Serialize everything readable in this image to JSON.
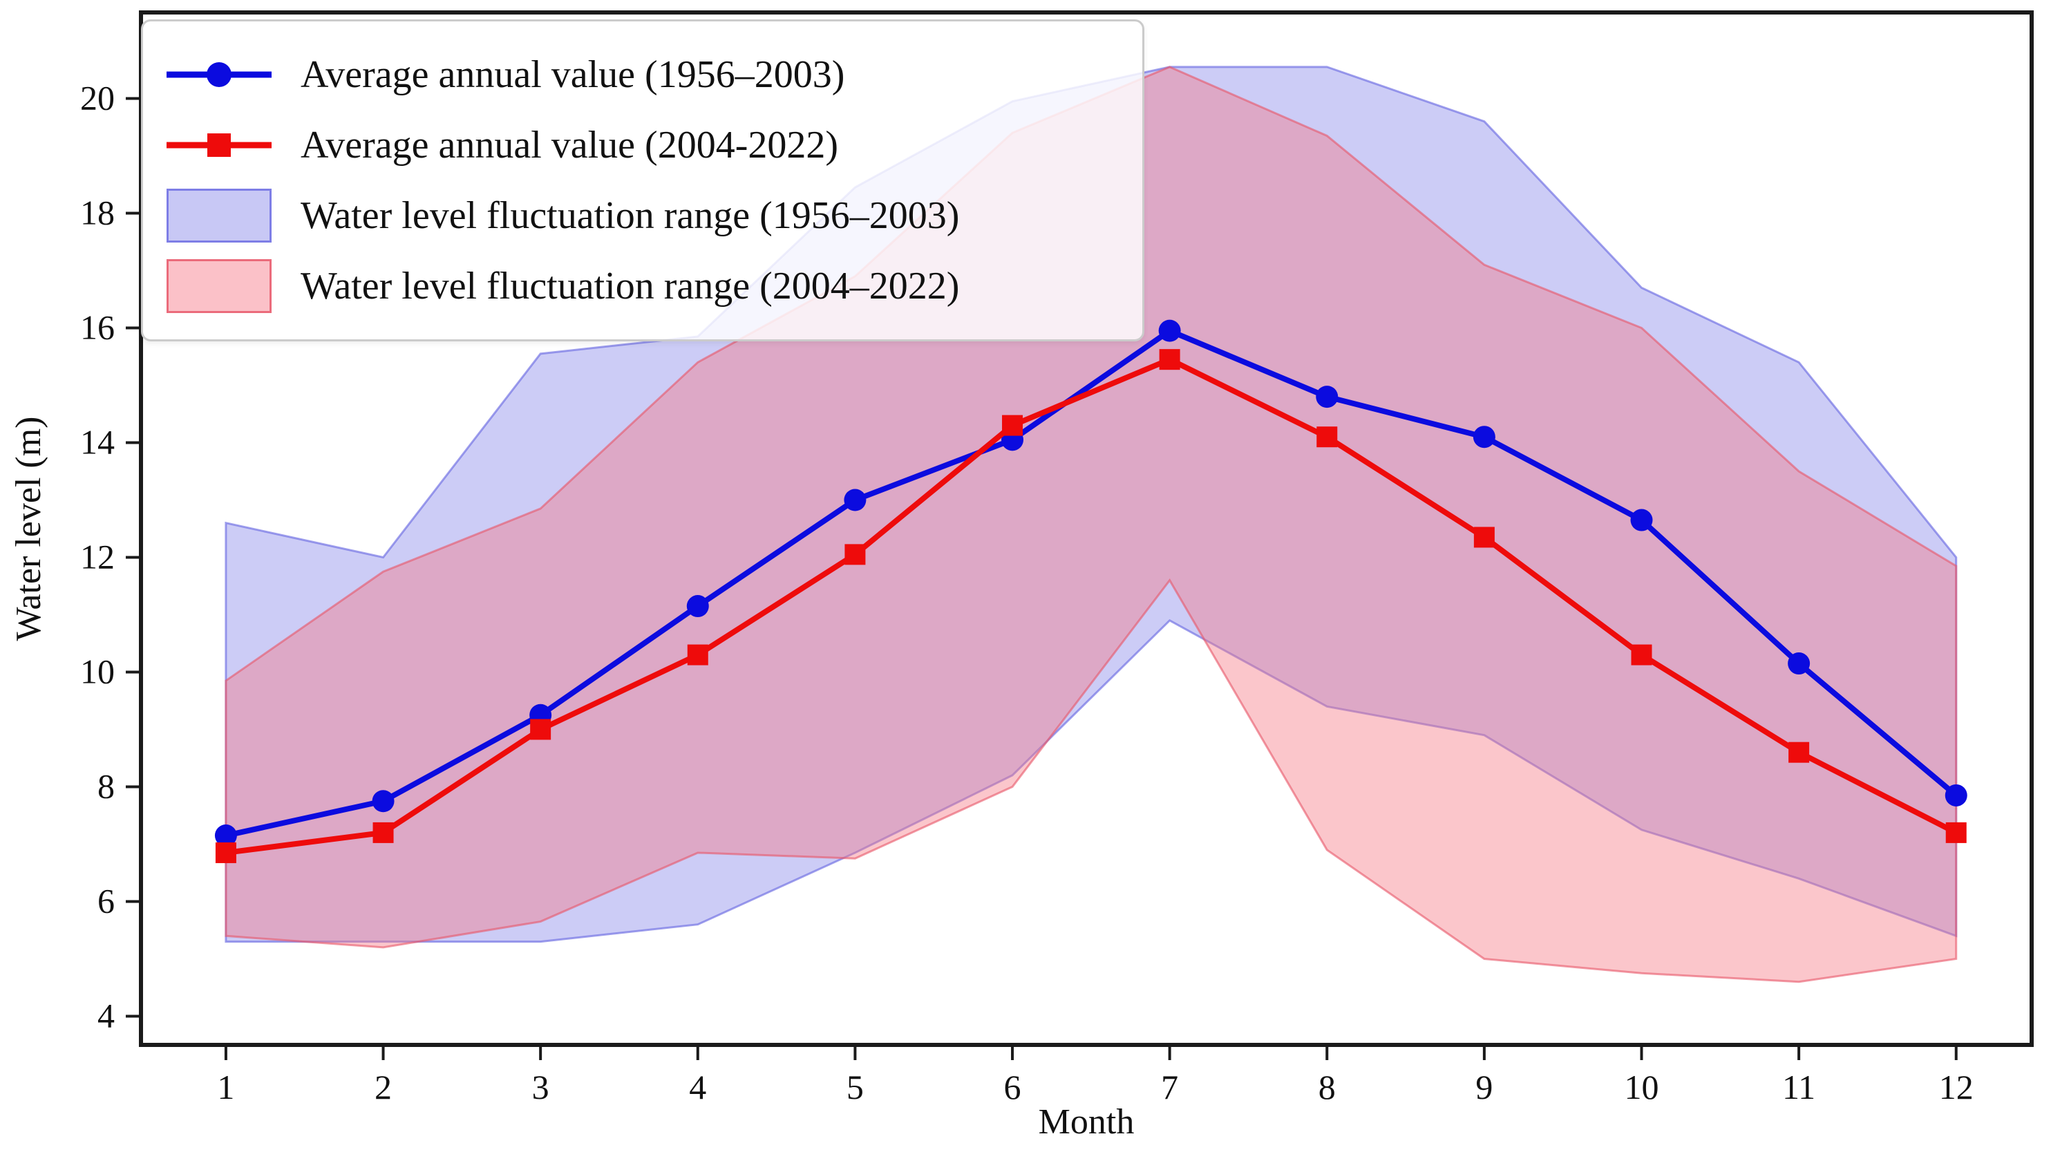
{
  "chart_data": {
    "type": "line",
    "title": "",
    "xlabel": "Month",
    "ylabel": "Water level (m)",
    "x_ticks": [
      1,
      2,
      3,
      4,
      5,
      6,
      7,
      8,
      9,
      10,
      11,
      12
    ],
    "y_ticks": [
      4,
      6,
      8,
      10,
      12,
      14,
      16,
      18,
      20
    ],
    "xlim": [
      0.46,
      12.48
    ],
    "ylim": [
      3.5,
      21.5
    ],
    "grid": false,
    "months": [
      1,
      2,
      3,
      4,
      5,
      6,
      7,
      8,
      9,
      10,
      11,
      12
    ],
    "series": [
      {
        "name": "Average annual value (1956–2003)",
        "marker": "circle",
        "color": "#0b0bdf",
        "values": [
          7.15,
          7.75,
          9.25,
          11.15,
          13.0,
          14.05,
          15.95,
          14.8,
          14.1,
          12.65,
          10.15,
          7.85
        ]
      },
      {
        "name": "Average annual value (2004-2022)",
        "marker": "square",
        "color": "#ee0b0b",
        "values": [
          6.85,
          7.2,
          9.0,
          10.3,
          12.05,
          14.3,
          15.45,
          14.1,
          12.35,
          10.3,
          8.6,
          7.2
        ]
      }
    ],
    "bands": [
      {
        "name": "Water level fluctuation range (1956–2003)",
        "fill": "rgba(133,133,233,0.42)",
        "edge": "rgba(108,108,226,0.65)",
        "max": [
          12.6,
          12.0,
          15.55,
          15.85,
          18.45,
          19.95,
          20.55,
          20.55,
          19.6,
          16.7,
          15.4,
          12.0
        ],
        "min": [
          5.3,
          5.3,
          5.3,
          5.6,
          6.85,
          8.2,
          10.9,
          9.4,
          8.9,
          7.25,
          6.4,
          5.4
        ]
      },
      {
        "name": "Water level fluctuation range (2004–2022)",
        "fill": "rgba(246,118,132,0.42)",
        "edge": "rgba(231,85,104,0.6)",
        "max": [
          9.85,
          11.75,
          12.85,
          15.4,
          16.9,
          19.4,
          20.55,
          19.35,
          17.1,
          16.0,
          13.5,
          11.85
        ],
        "min": [
          5.4,
          5.2,
          5.65,
          6.85,
          6.75,
          8.0,
          11.6,
          6.9,
          5.0,
          4.75,
          4.6,
          5.0
        ]
      }
    ],
    "legend_position": "upper-left",
    "axis_color": "#1a1a1a"
  },
  "legend": {
    "items": [
      {
        "label": "Average annual value (1956–2003)",
        "type": "line-circle",
        "color": "#0b0bdf"
      },
      {
        "label": "Average annual value (2004-2022)",
        "type": "line-square",
        "color": "#ee0b0b"
      },
      {
        "label": "Water level fluctuation range (1956–2003)",
        "type": "patch",
        "fill": "rgba(133,133,233,0.45)",
        "edge": "rgba(108,108,226,0.8)"
      },
      {
        "label": "Water level fluctuation range (2004–2022)",
        "type": "patch",
        "fill": "rgba(246,118,132,0.45)",
        "edge": "rgba(231,85,104,0.8)"
      }
    ]
  },
  "axes": {
    "x_label": "Month",
    "y_label": "Water level (m)"
  }
}
